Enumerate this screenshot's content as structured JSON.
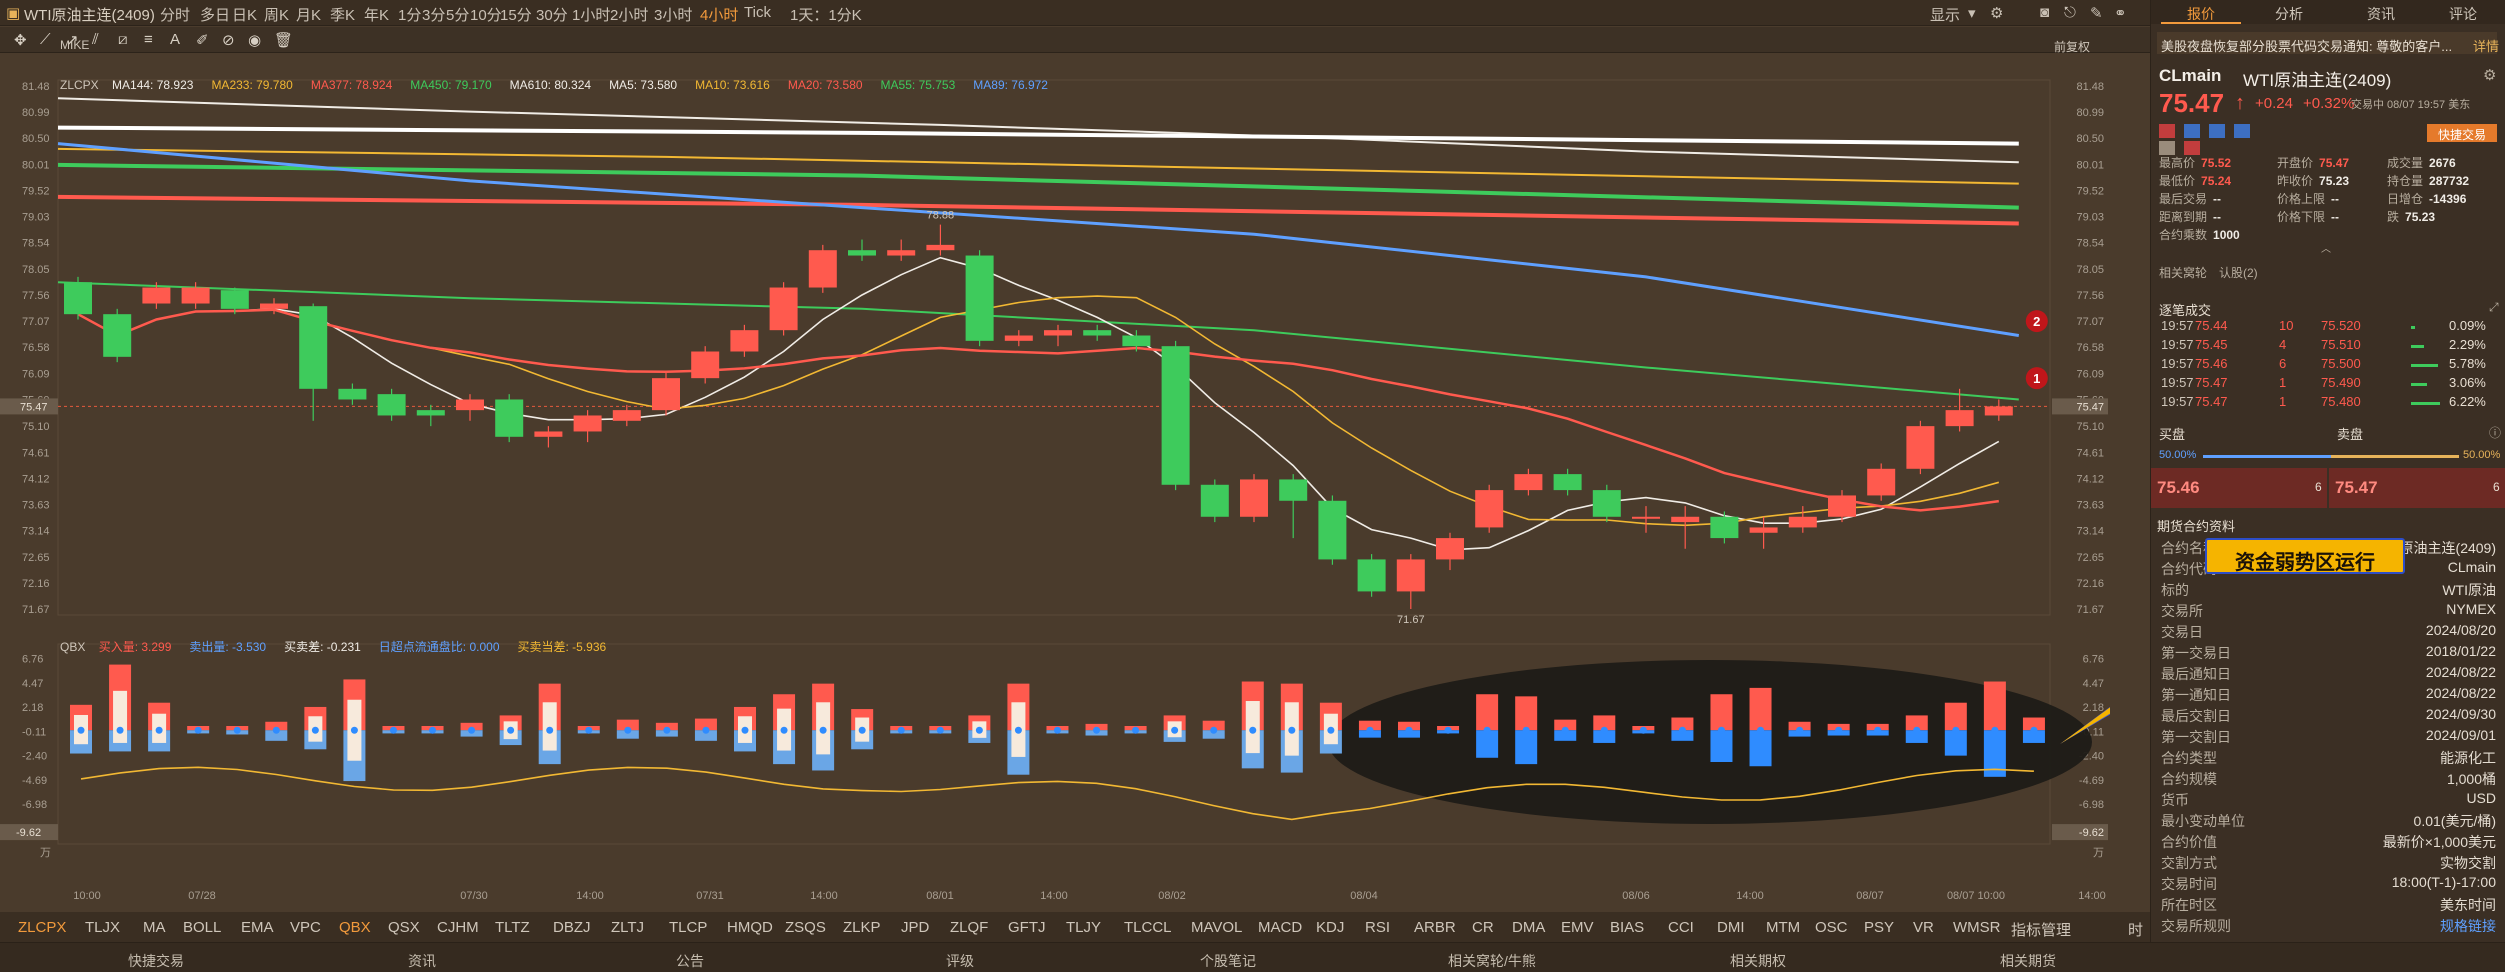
{
  "window": {
    "title": "WTI原油主连(2409)"
  },
  "timeframes": [
    "分时",
    "多日",
    "日K",
    "周K",
    "月K",
    "季K",
    "年K",
    "1分",
    "3分",
    "5分",
    "10分",
    "15分",
    "30分",
    "1小时",
    "2小时",
    "3小时",
    "4小时",
    "Tick",
    "1天：1分K"
  ],
  "active_timeframe": "4小时",
  "top_right": {
    "display_label": "显示"
  },
  "chart_header": {
    "indicator": "MIKE",
    "ma_label": "ZLCPX",
    "ma_items": [
      {
        "label": "MA144: 78.923",
        "color": "#f0ece6"
      },
      {
        "label": "MA233: 79.780",
        "color": "#f2b833"
      },
      {
        "label": "MA377: 78.924",
        "color": "#ff5a4e"
      },
      {
        "label": "MA450: 79.170",
        "color": "#3ecb5c"
      },
      {
        "label": "MA610: 80.324",
        "color": "#f0ece6"
      },
      {
        "label": "MA5: 73.580",
        "color": "#f0ece6"
      },
      {
        "label": "MA10: 73.616",
        "color": "#f2b833"
      },
      {
        "label": "MA20: 73.580",
        "color": "#ff5a4e"
      },
      {
        "label": "MA55: 75.753",
        "color": "#3ecb5c"
      },
      {
        "label": "MA89: 76.972",
        "color": "#5fa0ff"
      }
    ],
    "restore_label": "前复权"
  },
  "sub_header": {
    "name": "QBX",
    "items": [
      {
        "label": "买入量: 3.299",
        "color": "#ff5a4e"
      },
      {
        "label": "卖出量: -3.530",
        "color": "#5fa0ff"
      },
      {
        "label": "买卖差: -0.231",
        "color": "#f0ece6"
      },
      {
        "label": "日超点流通盘比: 0.000",
        "color": "#5fa0ff"
      },
      {
        "label": "买卖当差: -5.936",
        "color": "#f2b833"
      }
    ]
  },
  "chart_data": {
    "type": "candlestick",
    "price_axis": {
      "min": 71.67,
      "max": 81.48,
      "ticks": [
        "81.48",
        "80.99",
        "80.50",
        "80.01",
        "79.52",
        "79.03",
        "78.54",
        "78.05",
        "77.56",
        "77.07",
        "76.58",
        "76.09",
        "75.60",
        "75.10",
        "74.61",
        "74.12",
        "73.63",
        "73.14",
        "72.65",
        "72.16",
        "71.67"
      ],
      "current": "75.47"
    },
    "time_labels": [
      "10:00",
      "07/28",
      "07/30",
      "14:00",
      "07/31",
      "14:00",
      "08/01",
      "14:00",
      "08/02",
      "08/04",
      "08/06",
      "14:00",
      "08/07",
      "08/07 10:00",
      "14:00"
    ],
    "candles": [
      {
        "o": 77.8,
        "c": 77.2,
        "h": 77.9,
        "l": 77.1
      },
      {
        "o": 77.2,
        "c": 76.4,
        "h": 77.3,
        "l": 76.3
      },
      {
        "o": 77.4,
        "c": 77.7,
        "h": 77.8,
        "l": 77.3
      },
      {
        "o": 77.4,
        "c": 77.7,
        "h": 77.8,
        "l": 77.3
      },
      {
        "o": 77.65,
        "c": 77.3,
        "h": 77.7,
        "l": 77.2
      },
      {
        "o": 77.3,
        "c": 77.4,
        "h": 77.5,
        "l": 77.2
      },
      {
        "o": 77.35,
        "c": 75.8,
        "h": 77.4,
        "l": 75.2
      },
      {
        "o": 75.8,
        "c": 75.6,
        "h": 75.9,
        "l": 75.5
      },
      {
        "o": 75.7,
        "c": 75.3,
        "h": 75.8,
        "l": 75.2
      },
      {
        "o": 75.4,
        "c": 75.3,
        "h": 75.5,
        "l": 75.1
      },
      {
        "o": 75.4,
        "c": 75.6,
        "h": 75.7,
        "l": 75.2
      },
      {
        "o": 75.6,
        "c": 74.9,
        "h": 75.7,
        "l": 74.8
      },
      {
        "o": 74.9,
        "c": 75.0,
        "h": 75.1,
        "l": 74.7
      },
      {
        "o": 75.0,
        "c": 75.3,
        "h": 75.4,
        "l": 74.8
      },
      {
        "o": 75.2,
        "c": 75.4,
        "h": 75.5,
        "l": 75.1
      },
      {
        "o": 75.4,
        "c": 76.0,
        "h": 76.1,
        "l": 75.3
      },
      {
        "o": 76.0,
        "c": 76.5,
        "h": 76.6,
        "l": 75.9
      },
      {
        "o": 76.5,
        "c": 76.9,
        "h": 77.0,
        "l": 76.4
      },
      {
        "o": 76.9,
        "c": 77.7,
        "h": 77.8,
        "l": 76.8
      },
      {
        "o": 77.7,
        "c": 78.4,
        "h": 78.5,
        "l": 77.6
      },
      {
        "o": 78.4,
        "c": 78.3,
        "h": 78.6,
        "l": 78.2
      },
      {
        "o": 78.3,
        "c": 78.4,
        "h": 78.6,
        "l": 78.2
      },
      {
        "o": 78.4,
        "c": 78.5,
        "h": 78.88,
        "l": 78.3
      },
      {
        "o": 78.3,
        "c": 76.7,
        "h": 78.4,
        "l": 76.6
      },
      {
        "o": 76.7,
        "c": 76.8,
        "h": 76.9,
        "l": 76.6
      },
      {
        "o": 76.8,
        "c": 76.9,
        "h": 77.0,
        "l": 76.6
      },
      {
        "o": 76.9,
        "c": 76.8,
        "h": 77.0,
        "l": 76.7
      },
      {
        "o": 76.8,
        "c": 76.6,
        "h": 76.9,
        "l": 76.5
      },
      {
        "o": 76.6,
        "c": 74.0,
        "h": 76.7,
        "l": 73.9
      },
      {
        "o": 74.0,
        "c": 73.4,
        "h": 74.1,
        "l": 73.3
      },
      {
        "o": 73.4,
        "c": 74.1,
        "h": 74.2,
        "l": 73.3
      },
      {
        "o": 74.1,
        "c": 73.7,
        "h": 74.2,
        "l": 73.0
      },
      {
        "o": 73.7,
        "c": 72.6,
        "h": 73.8,
        "l": 72.5
      },
      {
        "o": 72.6,
        "c": 72.0,
        "h": 72.7,
        "l": 71.9
      },
      {
        "o": 72.0,
        "c": 72.6,
        "h": 72.7,
        "l": 71.67
      },
      {
        "o": 72.6,
        "c": 73.0,
        "h": 73.1,
        "l": 72.4
      },
      {
        "o": 73.2,
        "c": 73.9,
        "h": 74.0,
        "l": 73.1
      },
      {
        "o": 73.9,
        "c": 74.2,
        "h": 74.3,
        "l": 73.8
      },
      {
        "o": 74.2,
        "c": 73.9,
        "h": 74.3,
        "l": 73.8
      },
      {
        "o": 73.9,
        "c": 73.4,
        "h": 74.0,
        "l": 73.3
      },
      {
        "o": 73.4,
        "c": 73.4,
        "h": 73.6,
        "l": 73.1
      },
      {
        "o": 73.3,
        "c": 73.4,
        "h": 73.6,
        "l": 72.8
      },
      {
        "o": 73.4,
        "c": 73.0,
        "h": 73.5,
        "l": 72.9
      },
      {
        "o": 73.1,
        "c": 73.2,
        "h": 73.4,
        "l": 72.8
      },
      {
        "o": 73.2,
        "c": 73.4,
        "h": 73.6,
        "l": 73.1
      },
      {
        "o": 73.4,
        "c": 73.8,
        "h": 73.9,
        "l": 73.3
      },
      {
        "o": 73.8,
        "c": 74.3,
        "h": 74.4,
        "l": 73.7
      },
      {
        "o": 74.3,
        "c": 75.1,
        "h": 75.2,
        "l": 74.2
      },
      {
        "o": 75.1,
        "c": 75.4,
        "h": 75.8,
        "l": 75.0
      },
      {
        "o": 75.3,
        "c": 75.47,
        "h": 75.6,
        "l": 75.2
      }
    ],
    "annotations": [
      {
        "label": "78.88"
      },
      {
        "label": "71.67"
      }
    ],
    "badges": [
      "2",
      "1"
    ],
    "sub_axis": {
      "ticks": [
        "6.76",
        "4.47",
        "2.18",
        "-0.11",
        "-2.40",
        "-4.69",
        "-6.98"
      ],
      "current": "-9.62",
      "unit": "万"
    },
    "sub_bars": [
      {
        "buy": 2.4,
        "sell": -2.2
      },
      {
        "buy": 6.2,
        "sell": -2.0
      },
      {
        "buy": 2.6,
        "sell": -2.0
      },
      {
        "buy": 0.4,
        "sell": -0.3
      },
      {
        "buy": 0.4,
        "sell": -0.4
      },
      {
        "buy": 0.8,
        "sell": -1.0
      },
      {
        "buy": 2.2,
        "sell": -1.8
      },
      {
        "buy": 4.8,
        "sell": -4.8
      },
      {
        "buy": 0.4,
        "sell": -0.3
      },
      {
        "buy": 0.4,
        "sell": -0.3
      },
      {
        "buy": 0.7,
        "sell": -0.6
      },
      {
        "buy": 1.4,
        "sell": -1.4
      },
      {
        "buy": 4.4,
        "sell": -3.2
      },
      {
        "buy": 0.4,
        "sell": -0.3
      },
      {
        "buy": 1.0,
        "sell": -0.8
      },
      {
        "buy": 0.7,
        "sell": -0.6
      },
      {
        "buy": 1.1,
        "sell": -1.0
      },
      {
        "buy": 2.2,
        "sell": -2.0
      },
      {
        "buy": 3.4,
        "sell": -3.2
      },
      {
        "buy": 4.4,
        "sell": -3.8
      },
      {
        "buy": 2.0,
        "sell": -1.8
      },
      {
        "buy": 0.4,
        "sell": -0.3
      },
      {
        "buy": 0.4,
        "sell": -0.3
      },
      {
        "buy": 1.4,
        "sell": -1.2
      },
      {
        "buy": 4.4,
        "sell": -4.2
      },
      {
        "buy": 0.4,
        "sell": -0.3
      },
      {
        "buy": 0.6,
        "sell": -0.5
      },
      {
        "buy": 0.4,
        "sell": -0.3
      },
      {
        "buy": 1.4,
        "sell": -1.1
      },
      {
        "buy": 0.9,
        "sell": -0.8
      },
      {
        "buy": 4.6,
        "sell": -3.6
      },
      {
        "buy": 4.4,
        "sell": -4.0
      },
      {
        "buy": 2.6,
        "sell": -2.2
      },
      {
        "buy": 0.9,
        "sell": -0.7
      },
      {
        "buy": 0.8,
        "sell": -0.7
      },
      {
        "buy": 0.4,
        "sell": -0.3
      },
      {
        "buy": 3.4,
        "sell": -2.6
      },
      {
        "buy": 3.2,
        "sell": -3.2
      },
      {
        "buy": 1.0,
        "sell": -1.0
      },
      {
        "buy": 1.4,
        "sell": -1.2
      },
      {
        "buy": 0.4,
        "sell": -0.3
      },
      {
        "buy": 1.2,
        "sell": -1.0
      },
      {
        "buy": 3.4,
        "sell": -3.0
      },
      {
        "buy": 4.0,
        "sell": -3.4
      },
      {
        "buy": 0.8,
        "sell": -0.6
      },
      {
        "buy": 0.6,
        "sell": -0.5
      },
      {
        "buy": 0.6,
        "sell": -0.5
      },
      {
        "buy": 1.4,
        "sell": -1.2
      },
      {
        "buy": 2.6,
        "sell": -2.4
      },
      {
        "buy": 4.6,
        "sell": -4.4
      },
      {
        "buy": 1.2,
        "sell": -1.2
      }
    ],
    "callout": "资金弱势区运行"
  },
  "indicator_tabs": [
    "ZLCPX",
    "TLJX",
    "MA",
    "BOLL",
    "EMA",
    "VPC",
    "QBX",
    "QSX",
    "CJHM",
    "TLTZ",
    "DBZJ",
    "ZLTJ",
    "TLCP",
    "HMQD",
    "ZSQS",
    "ZLKP",
    "JPD",
    "ZLQF",
    "GFTJ",
    "TLJY",
    "TLCCL",
    "MAVOL",
    "MACD",
    "KDJ",
    "RSI",
    "ARBR",
    "CR",
    "DMA",
    "EMV",
    "BIAS",
    "CCI",
    "DMI",
    "MTM",
    "OSC",
    "PSY",
    "VR",
    "WMSR",
    "指标管理"
  ],
  "active_indicators": [
    "ZLCPX",
    "QBX"
  ],
  "indicator_tab_right": "时段",
  "footer": [
    "快捷交易",
    "资讯",
    "公告",
    "评级",
    "个股笔记",
    "相关窝轮/牛熊",
    "相关期权",
    "相关期货"
  ],
  "right_panel": {
    "tabs": [
      "报价",
      "分析",
      "资讯",
      "评论"
    ],
    "news": "美股夜盘恢复部分股票代码交易通知: 尊敬的客户...",
    "news_link": "详情",
    "symbol": "CLmain",
    "name": "WTI原油主连(2409)",
    "price": "75.47",
    "arrow": "↑",
    "change": "+0.24",
    "pct": "+0.32%",
    "status": "交易中 08/07 19:57 美东",
    "quick_trade": "快捷交易",
    "quote_grid": [
      {
        "k": "最高价",
        "v": "75.52",
        "c": "#ff5a4e"
      },
      {
        "k": "开盘价",
        "v": "75.47",
        "c": "#ff5a4e"
      },
      {
        "k": "成交量",
        "v": "2676",
        "c": "#f0ece6"
      },
      {
        "k": "最低价",
        "v": "75.24",
        "c": "#ff5a4e"
      },
      {
        "k": "昨收价",
        "v": "75.23",
        "c": "#f0ece6"
      },
      {
        "k": "持仓量",
        "v": "287732",
        "c": "#f0ece6"
      },
      {
        "k": "最后交易",
        "v": "--",
        "c": "#f0ece6"
      },
      {
        "k": "价格上限",
        "v": "--",
        "c": "#f0ece6"
      },
      {
        "k": "日增仓",
        "v": "-14396",
        "c": "#f0ece6"
      },
      {
        "k": "距离到期",
        "v": "--",
        "c": "#f0ece6"
      },
      {
        "k": "价格下限",
        "v": "--",
        "c": "#f0ece6"
      },
      {
        "k": "跌",
        "v": "75.23",
        "c": "#f0ece6"
      },
      {
        "k": "合约乘数",
        "v": "1000",
        "c": "#f0ece6"
      }
    ],
    "links": [
      "相关窝轮",
      "认股(2)"
    ],
    "trades_title": "逐笔成交",
    "trades": [
      {
        "t": "19:57",
        "p": "75.44",
        "q": "10",
        "lp": "75.520",
        "pct": "0.09%"
      },
      {
        "t": "19:57",
        "p": "75.45",
        "q": "4",
        "lp": "75.510",
        "pct": "2.29%"
      },
      {
        "t": "19:57",
        "p": "75.46",
        "q": "6",
        "lp": "75.500",
        "pct": "5.78%"
      },
      {
        "t": "19:57",
        "p": "75.47",
        "q": "1",
        "lp": "75.490",
        "pct": "3.06%"
      },
      {
        "t": "19:57",
        "p": "75.47",
        "q": "1",
        "lp": "75.480",
        "pct": "6.22%"
      }
    ],
    "bid_label": "买盘",
    "ask_label": "卖盘",
    "bid_pct": "50.00%",
    "ask_pct": "50.00%",
    "bid_price": "75.46",
    "bid_qty": "6",
    "ask_price": "75.47",
    "ask_qty": "6",
    "contract_title": "期货合约资料",
    "contract": [
      {
        "k": "合约名称",
        "v": "原油主连(2409)"
      },
      {
        "k": "合约代码",
        "v": "CLmain"
      },
      {
        "k": "标的",
        "v": "WTI原油"
      },
      {
        "k": "交易所",
        "v": "NYMEX"
      },
      {
        "k": "交易日",
        "v": "2024/08/20"
      },
      {
        "k": "第一交易日",
        "v": "2018/01/22"
      },
      {
        "k": "最后通知日",
        "v": "2024/08/22"
      },
      {
        "k": "第一通知日",
        "v": "2024/08/22"
      },
      {
        "k": "最后交割日",
        "v": "2024/09/30"
      },
      {
        "k": "第一交割日",
        "v": "2024/09/01"
      },
      {
        "k": "合约类型",
        "v": "能源化工"
      },
      {
        "k": "合约规模",
        "v": "1,000桶"
      },
      {
        "k": "货币",
        "v": "USD"
      },
      {
        "k": "最小变动单位",
        "v": "0.01(美元/桶)"
      },
      {
        "k": "合约价值",
        "v": "最新价×1,000美元"
      },
      {
        "k": "交割方式",
        "v": "实物交割"
      },
      {
        "k": "交易时间",
        "v": "18:00(T-1)-17:00"
      },
      {
        "k": "所在时区",
        "v": "美东时间"
      },
      {
        "k": "交易所规则",
        "v": "规格链接"
      }
    ]
  }
}
